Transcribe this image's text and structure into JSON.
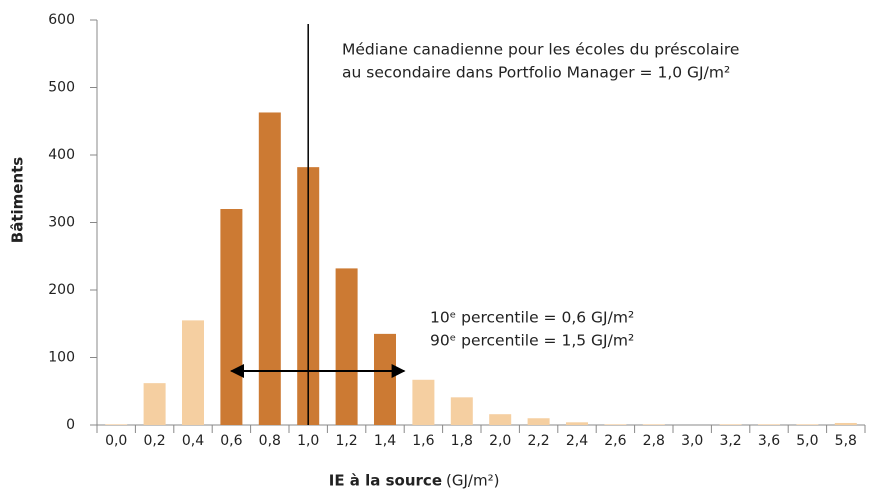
{
  "chart_data": {
    "type": "bar",
    "ylabel": "Bâtiments",
    "xlabel": "IE à la source",
    "xlabel_unit": "(GJ/m²)",
    "categories": [
      "0,0",
      "0,2",
      "0,4",
      "0,6",
      "0,8",
      "1,0",
      "1,2",
      "1,4",
      "1,6",
      "1,8",
      "2,0",
      "2,2",
      "2,4",
      "2,6",
      "2,8",
      "3,0",
      "3,2",
      "3,6",
      "5,0",
      "5,8"
    ],
    "values": [
      1,
      62,
      155,
      320,
      463,
      382,
      232,
      135,
      67,
      41,
      16,
      10,
      4,
      1,
      1,
      0,
      1,
      1,
      1,
      3
    ],
    "colors": [
      "#f5cfa1",
      "#f5cfa1",
      "#f5cfa1",
      "#cc7a33",
      "#cc7a33",
      "#cc7a33",
      "#cc7a33",
      "#cc7a33",
      "#f5cfa1",
      "#f5cfa1",
      "#f5cfa1",
      "#f5cfa1",
      "#f5cfa1",
      "#f5cfa1",
      "#f5cfa1",
      "#f5cfa1",
      "#f5cfa1",
      "#f5cfa1",
      "#f5cfa1",
      "#f5cfa1"
    ],
    "ylim": [
      0,
      600
    ],
    "yticks": [
      0,
      100,
      200,
      300,
      400,
      500,
      600
    ],
    "median": 1.0,
    "percentile_10": 0.6,
    "percentile_90": 1.5,
    "annotations": [
      "Médiane canadienne pour les écoles du préscolaire",
      "au secondaire dans Portfolio Manager = 1,0 GJ/m²",
      "10ᵉ percentile = 0,6 GJ/m²",
      "90ᵉ percentile = 1,5 GJ/m²"
    ]
  }
}
